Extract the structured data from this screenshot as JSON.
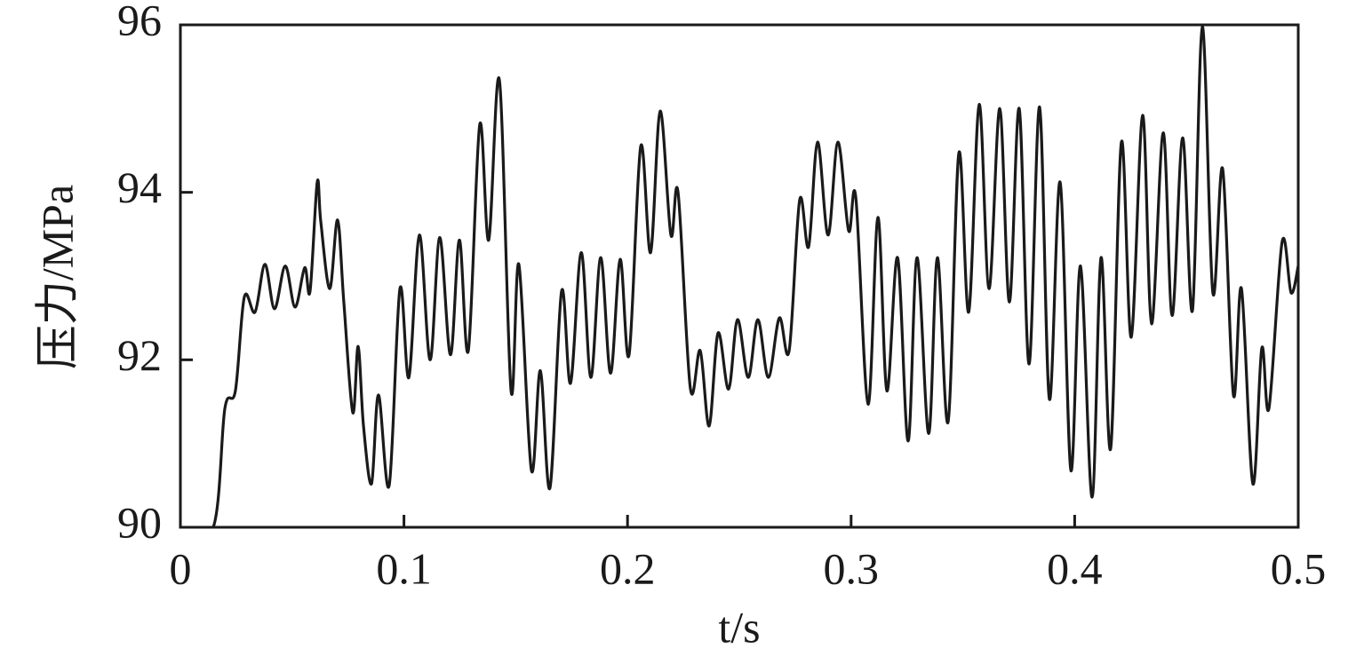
{
  "chart_data": {
    "type": "line",
    "x_label": "t/s",
    "y_label": "压力/MPa",
    "x": [
      0,
      0.0147,
      0.0199,
      0.0246,
      0.0286,
      0.0334,
      0.0378,
      0.0421,
      0.0469,
      0.0513,
      0.0556,
      0.058,
      0.0612,
      0.0628,
      0.0668,
      0.0703,
      0.0731,
      0.0771,
      0.0795,
      0.0819,
      0.0855,
      0.0886,
      0.0934,
      0.0982,
      0.1022,
      0.1069,
      0.1117,
      0.116,
      0.1208,
      0.1248,
      0.1288,
      0.1339,
      0.1379,
      0.1427,
      0.1479,
      0.1514,
      0.157,
      0.161,
      0.1653,
      0.1705,
      0.1745,
      0.1793,
      0.1836,
      0.188,
      0.1924,
      0.1967,
      0.2007,
      0.2059,
      0.2103,
      0.2146,
      0.2194,
      0.2226,
      0.2281,
      0.2325,
      0.2365,
      0.2405,
      0.2452,
      0.2492,
      0.254,
      0.2583,
      0.263,
      0.2679,
      0.2723,
      0.277,
      0.281,
      0.285,
      0.2897,
      0.2941,
      0.2989,
      0.3021,
      0.3076,
      0.312,
      0.316,
      0.3208,
      0.3255,
      0.3295,
      0.3347,
      0.3386,
      0.3434,
      0.3482,
      0.3526,
      0.3573,
      0.3617,
      0.3665,
      0.3708,
      0.3752,
      0.3796,
      0.3843,
      0.3887,
      0.3935,
      0.3983,
      0.4026,
      0.4078,
      0.4118,
      0.4161,
      0.4209,
      0.4253,
      0.4304,
      0.4344,
      0.4396,
      0.4436,
      0.4483,
      0.4527,
      0.4571,
      0.4618,
      0.4662,
      0.471,
      0.4746,
      0.4797,
      0.4837,
      0.4869,
      0.4928,
      0.4968,
      0.5
    ],
    "values": [
      90,
      90,
      91.42,
      91.63,
      92.75,
      92.57,
      93.14,
      92.61,
      93.12,
      92.63,
      93.1,
      92.82,
      94.12,
      93.65,
      92.85,
      93.67,
      92.69,
      91.37,
      92.16,
      91.21,
      90.52,
      91.58,
      90.5,
      92.85,
      91.79,
      93.49,
      92.0,
      93.46,
      92.06,
      93.43,
      92.11,
      94.81,
      93.43,
      95.34,
      91.63,
      93.14,
      90.68,
      91.87,
      90.47,
      92.82,
      91.72,
      93.28,
      91.79,
      93.22,
      91.84,
      93.2,
      92.06,
      94.55,
      93.28,
      94.97,
      93.49,
      94.0,
      91.66,
      92.11,
      91.21,
      92.32,
      91.65,
      92.48,
      91.79,
      92.48,
      91.79,
      92.5,
      92.11,
      93.91,
      93.35,
      94.6,
      93.49,
      94.6,
      93.54,
      93.94,
      91.47,
      93.7,
      91.63,
      93.22,
      91.03,
      93.22,
      91.12,
      93.22,
      91.26,
      94.47,
      92.57,
      95.05,
      92.85,
      95.0,
      92.69,
      95.0,
      91.95,
      95.02,
      91.53,
      94.12,
      90.68,
      93.12,
      90.36,
      93.22,
      90.94,
      94.6,
      92.27,
      94.92,
      92.43,
      94.71,
      92.53,
      94.65,
      92.59,
      95.98,
      92.8,
      94.28,
      91.58,
      92.85,
      90.52,
      92.14,
      91.42,
      93.41,
      92.8,
      93.12
    ],
    "color": "#1a1a1a",
    "xlim": [
      0,
      0.5
    ],
    "xticks": [
      0,
      0.1,
      0.2,
      0.3,
      0.4,
      0.5
    ],
    "ylim": [
      90,
      96
    ],
    "yticks": [
      90,
      92,
      94,
      96
    ]
  }
}
